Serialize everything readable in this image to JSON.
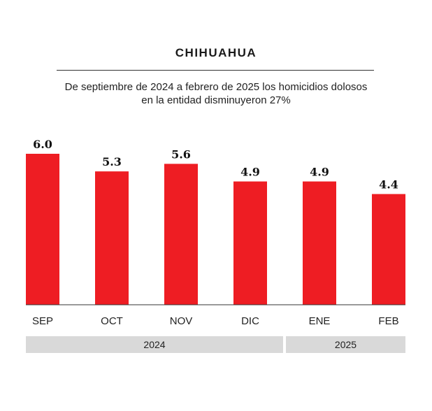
{
  "colors": {
    "bar": "#ee1d23",
    "year_band": "#d9d9d9",
    "axis": "#333333"
  },
  "chart_data": {
    "type": "bar",
    "title": "CHIHUAHUA",
    "subtitle_lines": [
      "De septiembre de 2024 a febrero de 2025 los homicidios dolosos",
      "en la entidad disminuyeron 27%"
    ],
    "categories": [
      "SEP",
      "OCT",
      "NOV",
      "DIC",
      "ENE",
      "FEB"
    ],
    "values": [
      6.0,
      5.3,
      5.6,
      4.9,
      4.9,
      4.4
    ],
    "value_labels": [
      "6.0",
      "5.3",
      "5.6",
      "4.9",
      "4.9",
      "4.4"
    ],
    "year_groups": [
      {
        "label": "2024",
        "start": 0,
        "end": 3
      },
      {
        "label": "2025",
        "start": 4,
        "end": 5
      }
    ],
    "xlabel": "",
    "ylabel": "",
    "ylim": [
      0,
      6.0
    ],
    "grid": false,
    "legend": "none"
  }
}
